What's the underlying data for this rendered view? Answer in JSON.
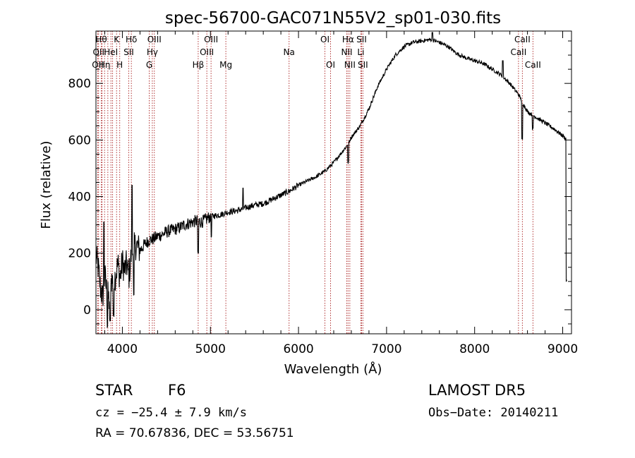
{
  "chart_data": {
    "type": "line",
    "title": "spec-56700-GAC071N55V2_sp01-030.fits",
    "xlabel": "Wavelength (Å)",
    "ylabel": "Flux (relative)",
    "xlim": [
      3700,
      9100
    ],
    "ylim": [
      -85,
      985
    ],
    "xticks": [
      4000,
      5000,
      6000,
      7000,
      8000,
      9000
    ],
    "yticks": [
      0,
      200,
      400,
      600,
      800
    ],
    "xtick_labels": [
      "4000",
      "5000",
      "6000",
      "7000",
      "8000",
      "9000"
    ],
    "ytick_labels": [
      "0",
      "200",
      "400",
      "600",
      "800"
    ],
    "grid": false,
    "line_color": "#000000",
    "marker_color": "#aa1f1f",
    "series": [
      {
        "points": [
          [
            3700,
            190
          ],
          [
            3725,
            150
          ],
          [
            3750,
            80
          ],
          [
            3775,
            40
          ],
          [
            3800,
            120
          ],
          [
            3825,
            60
          ],
          [
            3850,
            30
          ],
          [
            3875,
            110
          ],
          [
            3900,
            90
          ],
          [
            3925,
            130
          ],
          [
            3950,
            160
          ],
          [
            3975,
            110
          ],
          [
            4000,
            170
          ],
          [
            4025,
            140
          ],
          [
            4050,
            160
          ],
          [
            4075,
            120
          ],
          [
            4100,
            190
          ],
          [
            4150,
            230
          ],
          [
            4200,
            210
          ],
          [
            4250,
            230
          ],
          [
            4300,
            245
          ],
          [
            4350,
            250
          ],
          [
            4400,
            260
          ],
          [
            4450,
            265
          ],
          [
            4500,
            275
          ],
          [
            4550,
            280
          ],
          [
            4600,
            285
          ],
          [
            4650,
            290
          ],
          [
            4700,
            300
          ],
          [
            4750,
            305
          ],
          [
            4800,
            310
          ],
          [
            4850,
            315
          ],
          [
            4900,
            310
          ],
          [
            4950,
            320
          ],
          [
            5000,
            330
          ],
          [
            5100,
            335
          ],
          [
            5200,
            345
          ],
          [
            5300,
            350
          ],
          [
            5400,
            360
          ],
          [
            5500,
            370
          ],
          [
            5600,
            375
          ],
          [
            5700,
            390
          ],
          [
            5800,
            405
          ],
          [
            5900,
            420
          ],
          [
            6000,
            440
          ],
          [
            6100,
            455
          ],
          [
            6200,
            470
          ],
          [
            6300,
            490
          ],
          [
            6400,
            520
          ],
          [
            6500,
            560
          ],
          [
            6550,
            580
          ],
          [
            6600,
            610
          ],
          [
            6700,
            650
          ],
          [
            6800,
            710
          ],
          [
            6900,
            790
          ],
          [
            7000,
            850
          ],
          [
            7100,
            900
          ],
          [
            7200,
            930
          ],
          [
            7300,
            945
          ],
          [
            7400,
            950
          ],
          [
            7500,
            955
          ],
          [
            7600,
            945
          ],
          [
            7700,
            930
          ],
          [
            7800,
            905
          ],
          [
            7900,
            890
          ],
          [
            8000,
            880
          ],
          [
            8100,
            870
          ],
          [
            8200,
            850
          ],
          [
            8300,
            830
          ],
          [
            8400,
            800
          ],
          [
            8500,
            760
          ],
          [
            8600,
            700
          ],
          [
            8700,
            680
          ],
          [
            8800,
            660
          ],
          [
            8900,
            640
          ],
          [
            9000,
            615
          ],
          [
            9050,
            600
          ]
        ],
        "dips": [
          [
            3830,
            -60
          ],
          [
            3860,
            -40
          ],
          [
            3900,
            -20
          ],
          [
            4130,
            50
          ],
          [
            4860,
            200
          ],
          [
            5010,
            260
          ],
          [
            6563,
            520
          ],
          [
            8540,
            600
          ],
          [
            8660,
            640
          ],
          [
            9045,
            100
          ]
        ],
        "spikes": [
          [
            3790,
            310
          ],
          [
            4110,
            440
          ],
          [
            5370,
            430
          ],
          [
            8320,
            880
          ],
          [
            7520,
            980
          ]
        ]
      }
    ],
    "lines": [
      {
        "w": 3720,
        "label": "OII",
        "row": 3
      },
      {
        "w": 3730,
        "label": "OII",
        "row": 2
      },
      {
        "w": 3760,
        "label": "Hθ",
        "row": 1
      },
      {
        "w": 3770,
        "label": "",
        "row": 0
      },
      {
        "w": 3798,
        "label": "Hη",
        "row": 3
      },
      {
        "w": 3835,
        "label": "",
        "row": 0
      },
      {
        "w": 3870,
        "label": "HeI",
        "row": 2
      },
      {
        "w": 3889,
        "label": "",
        "row": 0
      },
      {
        "w": 3934,
        "label": "K",
        "row": 1
      },
      {
        "w": 3970,
        "label": "H",
        "row": 3
      },
      {
        "w": 4072,
        "label": "SII",
        "row": 2
      },
      {
        "w": 4102,
        "label": "Hδ",
        "row": 1
      },
      {
        "w": 4305,
        "label": "G",
        "row": 3
      },
      {
        "w": 4340,
        "label": "Hγ",
        "row": 2
      },
      {
        "w": 4363,
        "label": "OIII",
        "row": 1
      },
      {
        "w": 4861,
        "label": "Hβ",
        "row": 3
      },
      {
        "w": 4959,
        "label": "OIII",
        "row": 2
      },
      {
        "w": 5007,
        "label": "OIII",
        "row": 1
      },
      {
        "w": 5175,
        "label": "Mg",
        "row": 3
      },
      {
        "w": 5893,
        "label": "Na",
        "row": 2
      },
      {
        "w": 6300,
        "label": "OI",
        "row": 1
      },
      {
        "w": 6364,
        "label": "OI",
        "row": 3
      },
      {
        "w": 6548,
        "label": "NII",
        "row": 2
      },
      {
        "w": 6563,
        "label": "Hα",
        "row": 1
      },
      {
        "w": 6583,
        "label": "NII",
        "row": 3
      },
      {
        "w": 6708,
        "label": "Li",
        "row": 2
      },
      {
        "w": 6716,
        "label": "SII",
        "row": 1
      },
      {
        "w": 6731,
        "label": "SII",
        "row": 3
      },
      {
        "w": 8498,
        "label": "CaII",
        "row": 2
      },
      {
        "w": 8542,
        "label": "CaII",
        "row": 1
      },
      {
        "w": 8662,
        "label": "CaII",
        "row": 3
      }
    ]
  },
  "info": {
    "class": "STAR",
    "subclass": "F6",
    "survey": "LAMOST DR5",
    "cz": "cz = −25.4 ± 7.9 km/s",
    "obsdate": "Obs−Date: 20140211",
    "radec": "RA =  70.67836, DEC =  53.56751"
  }
}
